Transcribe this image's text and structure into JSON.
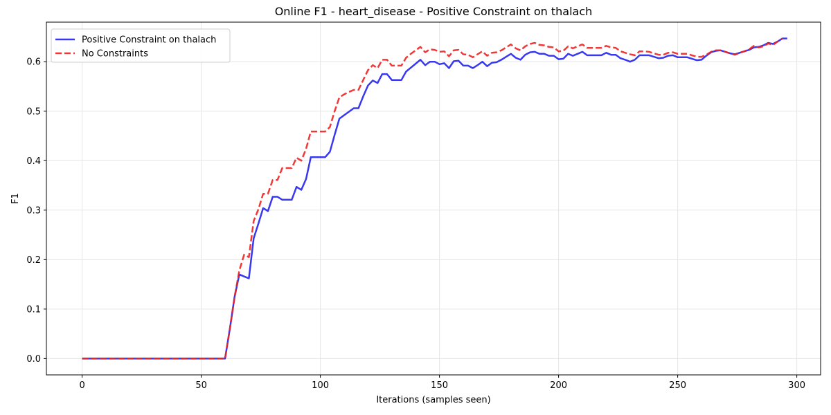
{
  "chart_data": {
    "type": "line",
    "title": "Online F1 - heart_disease - Positive Constraint on thalach",
    "xlabel": "Iterations (samples seen)",
    "ylabel": "F1",
    "xlim": [
      -15,
      310
    ],
    "ylim": [
      -0.033,
      0.68
    ],
    "xticks": [
      0,
      50,
      100,
      150,
      200,
      250,
      300
    ],
    "yticks": [
      0.0,
      0.1,
      0.2,
      0.3,
      0.4,
      0.5,
      0.6
    ],
    "ytick_labels": [
      "0.0",
      "0.1",
      "0.2",
      "0.3",
      "0.4",
      "0.5",
      "0.6"
    ],
    "grid": true,
    "legend_position": "top-left",
    "series": [
      {
        "name": "Positive Constraint on thalach",
        "color": "#2222ee",
        "style": "solid",
        "points": [
          [
            0,
            0
          ],
          [
            60,
            0
          ],
          [
            62,
            0.06
          ],
          [
            64,
            0.125
          ],
          [
            66,
            0.17
          ],
          [
            68,
            0.166
          ],
          [
            70,
            0.162
          ],
          [
            72,
            0.243
          ],
          [
            74,
            0.273
          ],
          [
            76,
            0.304
          ],
          [
            78,
            0.298
          ],
          [
            80,
            0.327
          ],
          [
            82,
            0.327
          ],
          [
            84,
            0.321
          ],
          [
            86,
            0.321
          ],
          [
            88,
            0.321
          ],
          [
            90,
            0.347
          ],
          [
            92,
            0.341
          ],
          [
            94,
            0.363
          ],
          [
            96,
            0.407
          ],
          [
            98,
            0.407
          ],
          [
            100,
            0.407
          ],
          [
            102,
            0.407
          ],
          [
            104,
            0.418
          ],
          [
            106,
            0.452
          ],
          [
            108,
            0.485
          ],
          [
            110,
            0.492
          ],
          [
            112,
            0.499
          ],
          [
            114,
            0.506
          ],
          [
            116,
            0.506
          ],
          [
            118,
            0.53
          ],
          [
            120,
            0.552
          ],
          [
            122,
            0.562
          ],
          [
            124,
            0.557
          ],
          [
            126,
            0.575
          ],
          [
            128,
            0.575
          ],
          [
            130,
            0.563
          ],
          [
            132,
            0.563
          ],
          [
            134,
            0.563
          ],
          [
            136,
            0.58
          ],
          [
            138,
            0.588
          ],
          [
            140,
            0.596
          ],
          [
            142,
            0.604
          ],
          [
            144,
            0.593
          ],
          [
            146,
            0.6
          ],
          [
            148,
            0.6
          ],
          [
            150,
            0.595
          ],
          [
            152,
            0.597
          ],
          [
            154,
            0.587
          ],
          [
            156,
            0.601
          ],
          [
            158,
            0.602
          ],
          [
            160,
            0.592
          ],
          [
            162,
            0.592
          ],
          [
            164,
            0.587
          ],
          [
            166,
            0.593
          ],
          [
            168,
            0.6
          ],
          [
            170,
            0.591
          ],
          [
            172,
            0.598
          ],
          [
            174,
            0.599
          ],
          [
            176,
            0.604
          ],
          [
            178,
            0.61
          ],
          [
            180,
            0.616
          ],
          [
            182,
            0.608
          ],
          [
            184,
            0.604
          ],
          [
            186,
            0.614
          ],
          [
            188,
            0.619
          ],
          [
            190,
            0.62
          ],
          [
            192,
            0.616
          ],
          [
            194,
            0.616
          ],
          [
            196,
            0.612
          ],
          [
            198,
            0.612
          ],
          [
            200,
            0.605
          ],
          [
            202,
            0.606
          ],
          [
            204,
            0.616
          ],
          [
            206,
            0.612
          ],
          [
            208,
            0.616
          ],
          [
            210,
            0.62
          ],
          [
            212,
            0.613
          ],
          [
            214,
            0.613
          ],
          [
            216,
            0.613
          ],
          [
            218,
            0.613
          ],
          [
            220,
            0.618
          ],
          [
            222,
            0.614
          ],
          [
            224,
            0.614
          ],
          [
            226,
            0.607
          ],
          [
            228,
            0.604
          ],
          [
            230,
            0.6
          ],
          [
            232,
            0.604
          ],
          [
            234,
            0.613
          ],
          [
            236,
            0.613
          ],
          [
            238,
            0.613
          ],
          [
            240,
            0.61
          ],
          [
            242,
            0.607
          ],
          [
            244,
            0.608
          ],
          [
            246,
            0.612
          ],
          [
            248,
            0.613
          ],
          [
            250,
            0.609
          ],
          [
            252,
            0.609
          ],
          [
            254,
            0.609
          ],
          [
            256,
            0.606
          ],
          [
            258,
            0.603
          ],
          [
            260,
            0.604
          ],
          [
            262,
            0.612
          ],
          [
            264,
            0.619
          ],
          [
            266,
            0.622
          ],
          [
            268,
            0.623
          ],
          [
            270,
            0.62
          ],
          [
            272,
            0.617
          ],
          [
            274,
            0.615
          ],
          [
            276,
            0.618
          ],
          [
            278,
            0.621
          ],
          [
            280,
            0.624
          ],
          [
            282,
            0.629
          ],
          [
            284,
            0.63
          ],
          [
            286,
            0.633
          ],
          [
            288,
            0.638
          ],
          [
            290,
            0.636
          ],
          [
            292,
            0.641
          ],
          [
            294,
            0.647
          ],
          [
            296,
            0.647
          ]
        ]
      },
      {
        "name": "No Constraints",
        "color": "#ee2222",
        "style": "dashed",
        "points": [
          [
            0,
            0
          ],
          [
            60,
            0
          ],
          [
            62,
            0.06
          ],
          [
            64,
            0.125
          ],
          [
            66,
            0.178
          ],
          [
            68,
            0.21
          ],
          [
            70,
            0.205
          ],
          [
            72,
            0.278
          ],
          [
            74,
            0.302
          ],
          [
            76,
            0.333
          ],
          [
            78,
            0.333
          ],
          [
            80,
            0.361
          ],
          [
            82,
            0.361
          ],
          [
            84,
            0.385
          ],
          [
            86,
            0.385
          ],
          [
            88,
            0.385
          ],
          [
            90,
            0.406
          ],
          [
            92,
            0.4
          ],
          [
            94,
            0.424
          ],
          [
            96,
            0.459
          ],
          [
            98,
            0.459
          ],
          [
            100,
            0.459
          ],
          [
            102,
            0.459
          ],
          [
            104,
            0.468
          ],
          [
            106,
            0.5
          ],
          [
            108,
            0.528
          ],
          [
            110,
            0.534
          ],
          [
            112,
            0.539
          ],
          [
            114,
            0.543
          ],
          [
            116,
            0.543
          ],
          [
            118,
            0.563
          ],
          [
            120,
            0.583
          ],
          [
            122,
            0.593
          ],
          [
            124,
            0.587
          ],
          [
            126,
            0.604
          ],
          [
            128,
            0.604
          ],
          [
            130,
            0.592
          ],
          [
            132,
            0.592
          ],
          [
            134,
            0.592
          ],
          [
            136,
            0.608
          ],
          [
            138,
            0.616
          ],
          [
            140,
            0.623
          ],
          [
            142,
            0.63
          ],
          [
            144,
            0.619
          ],
          [
            146,
            0.625
          ],
          [
            148,
            0.624
          ],
          [
            150,
            0.62
          ],
          [
            152,
            0.621
          ],
          [
            154,
            0.611
          ],
          [
            156,
            0.623
          ],
          [
            158,
            0.624
          ],
          [
            160,
            0.615
          ],
          [
            162,
            0.614
          ],
          [
            164,
            0.609
          ],
          [
            166,
            0.615
          ],
          [
            168,
            0.621
          ],
          [
            170,
            0.612
          ],
          [
            172,
            0.618
          ],
          [
            174,
            0.619
          ],
          [
            176,
            0.623
          ],
          [
            178,
            0.629
          ],
          [
            180,
            0.635
          ],
          [
            182,
            0.627
          ],
          [
            184,
            0.623
          ],
          [
            186,
            0.631
          ],
          [
            188,
            0.636
          ],
          [
            190,
            0.638
          ],
          [
            192,
            0.634
          ],
          [
            194,
            0.633
          ],
          [
            196,
            0.63
          ],
          [
            198,
            0.629
          ],
          [
            200,
            0.621
          ],
          [
            202,
            0.622
          ],
          [
            204,
            0.631
          ],
          [
            206,
            0.627
          ],
          [
            208,
            0.631
          ],
          [
            210,
            0.635
          ],
          [
            212,
            0.628
          ],
          [
            214,
            0.628
          ],
          [
            216,
            0.628
          ],
          [
            218,
            0.628
          ],
          [
            220,
            0.632
          ],
          [
            222,
            0.629
          ],
          [
            224,
            0.628
          ],
          [
            226,
            0.621
          ],
          [
            228,
            0.618
          ],
          [
            230,
            0.615
          ],
          [
            232,
            0.613
          ],
          [
            234,
            0.621
          ],
          [
            236,
            0.621
          ],
          [
            238,
            0.62
          ],
          [
            240,
            0.617
          ],
          [
            242,
            0.614
          ],
          [
            244,
            0.614
          ],
          [
            246,
            0.618
          ],
          [
            248,
            0.619
          ],
          [
            250,
            0.616
          ],
          [
            252,
            0.616
          ],
          [
            254,
            0.616
          ],
          [
            256,
            0.613
          ],
          [
            258,
            0.61
          ],
          [
            260,
            0.61
          ],
          [
            262,
            0.614
          ],
          [
            264,
            0.62
          ],
          [
            266,
            0.623
          ],
          [
            268,
            0.623
          ],
          [
            270,
            0.62
          ],
          [
            272,
            0.617
          ],
          [
            274,
            0.614
          ],
          [
            276,
            0.618
          ],
          [
            278,
            0.621
          ],
          [
            280,
            0.625
          ],
          [
            282,
            0.632
          ],
          [
            284,
            0.629
          ],
          [
            286,
            0.631
          ],
          [
            288,
            0.637
          ],
          [
            290,
            0.634
          ],
          [
            292,
            0.641
          ],
          [
            294,
            0.647
          ]
        ]
      }
    ]
  }
}
